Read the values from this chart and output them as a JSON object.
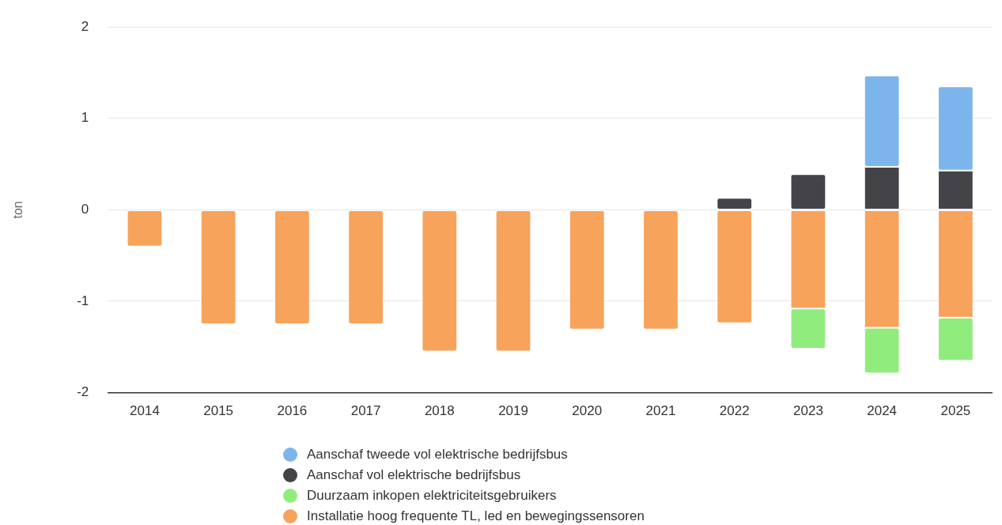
{
  "chart_data": {
    "type": "bar",
    "ylabel": "ton",
    "stacked": true,
    "categories": [
      "2014",
      "2015",
      "2016",
      "2017",
      "2018",
      "2019",
      "2020",
      "2021",
      "2022",
      "2023",
      "2024",
      "2025"
    ],
    "series": [
      {
        "name": "Installatie hoog frequente TL, led en bewegingssensoren",
        "color": "#f7a35c",
        "values": [
          -0.4,
          -1.25,
          -1.25,
          -1.25,
          -1.55,
          -1.55,
          -1.31,
          -1.31,
          -1.24,
          -1.08,
          -1.29,
          -1.18
        ]
      },
      {
        "name": "Duurzaam inkopen elektriciteitsgebruikers",
        "color": "#90ed7d",
        "values": [
          null,
          null,
          null,
          null,
          null,
          null,
          null,
          null,
          null,
          -0.44,
          -0.5,
          -0.47
        ]
      },
      {
        "name": "Aanschaf vol elektrische bedrijfsbus",
        "color": "#434348",
        "values": [
          null,
          null,
          null,
          null,
          null,
          null,
          null,
          null,
          0.13,
          0.39,
          0.47,
          0.43
        ]
      },
      {
        "name": "Aanschaf tweede vol elektrische bedrijfsbus",
        "color": "#7cb5ec",
        "values": [
          null,
          null,
          null,
          null,
          null,
          null,
          null,
          null,
          null,
          null,
          1.0,
          0.92
        ]
      }
    ],
    "ylim": [
      -2,
      2
    ],
    "yticks": [
      -2,
      -1,
      0,
      1,
      2
    ],
    "grid": "y",
    "legend": "bottom"
  }
}
